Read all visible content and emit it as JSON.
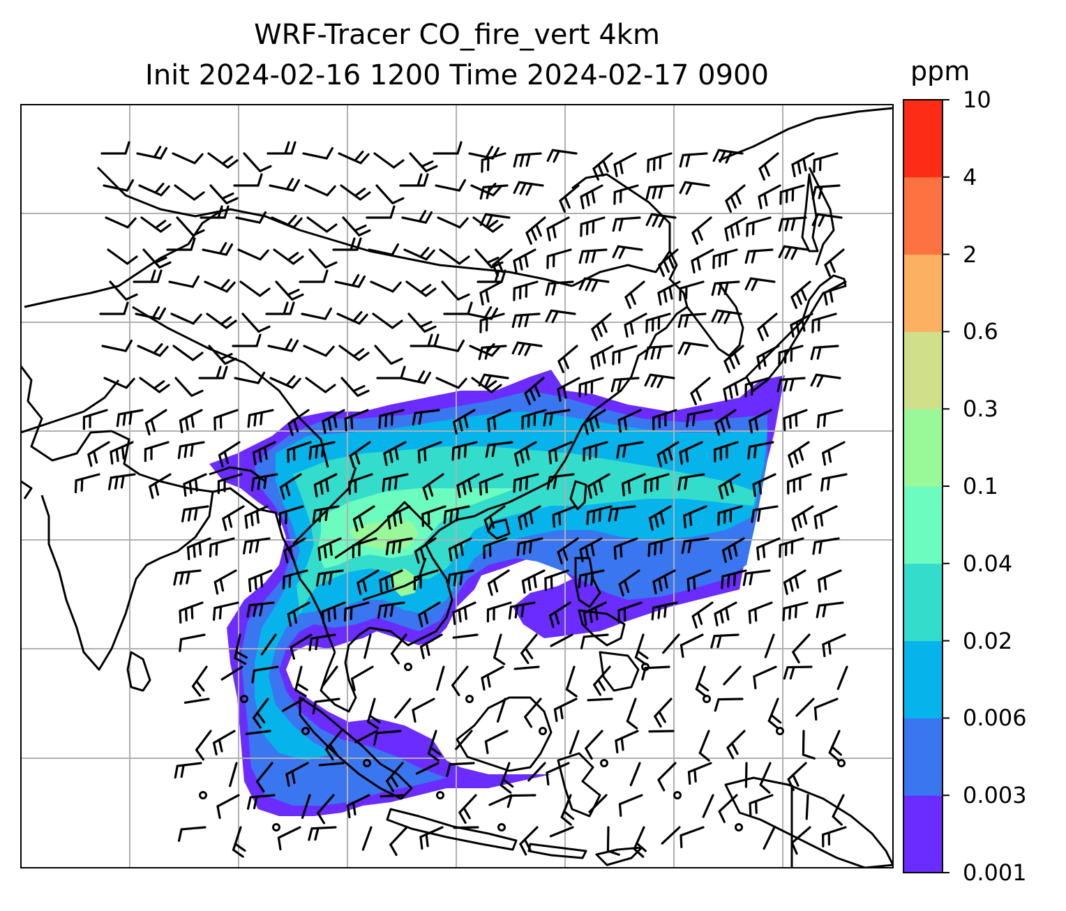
{
  "title_line1": "WRF-Tracer CO_fire_vert 4km",
  "title_line2": "Init 2024-02-16 1200 Time 2024-02-17 0900",
  "colorbar": {
    "unit": "ppm",
    "levels": [
      "0.001",
      "0.003",
      "0.006",
      "0.02",
      "0.04",
      "0.1",
      "0.3",
      "0.6",
      "2",
      "4",
      "10"
    ],
    "colors": [
      "#6a2cff",
      "#3a76f0",
      "#06b3ea",
      "#34dccc",
      "#6cfcc0",
      "#99f898",
      "#d0e08a",
      "#fcb062",
      "#fc7240",
      "#fc2c16"
    ]
  },
  "map": {
    "region": "South and Southeast Asia, East Asia, Western Pacific",
    "gridlines": true,
    "coastline_color": "#000000",
    "barb_color": "#000000",
    "plume_colors": {
      "lowest": "#6a2cff",
      "low": "#3a76f0",
      "mid": "#06b3ea",
      "higher": "#34dccc",
      "high": "#6cfcc0",
      "core": "#99f898"
    }
  }
}
